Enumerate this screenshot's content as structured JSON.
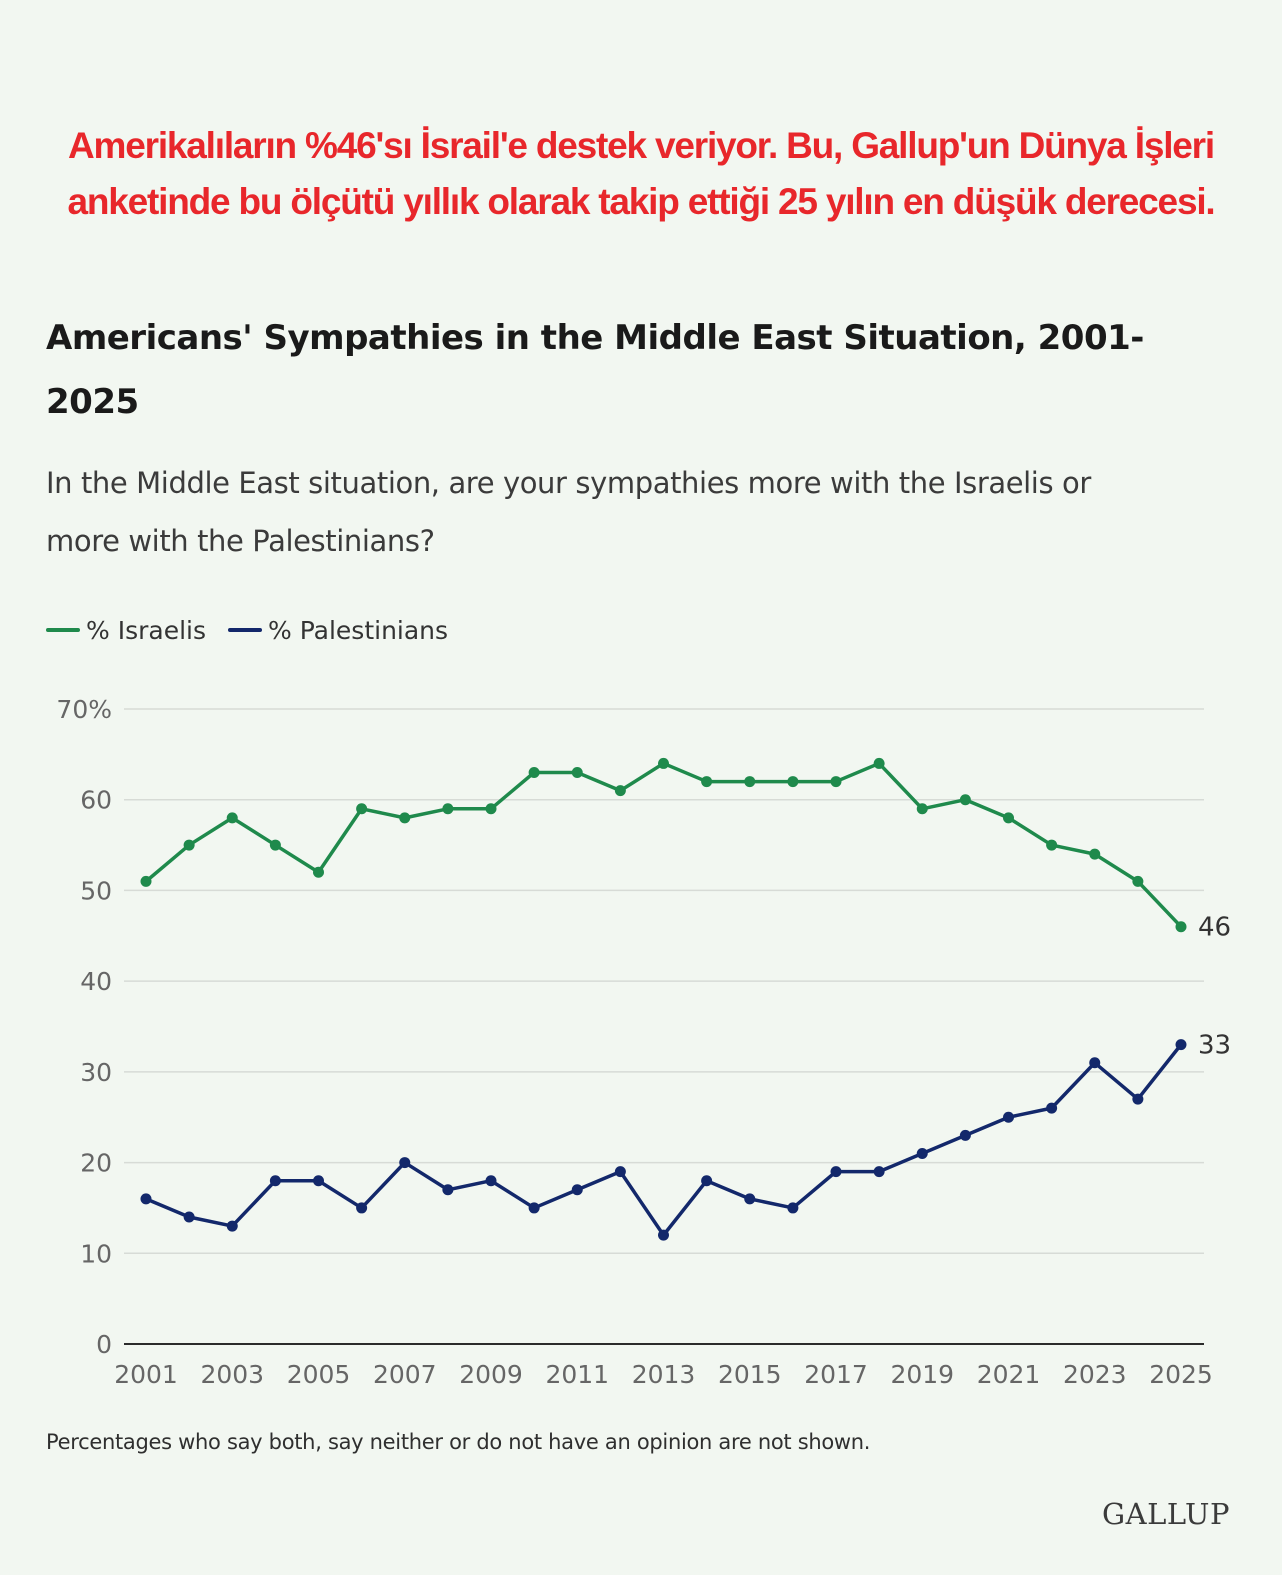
{
  "headline": {
    "line1": "Amerikalıların %46'sı İsrail'e destek veriyor. Bu, Gallup'un Dünya İşleri",
    "line2": "anketinde bu ölçütü yıllık olarak takip ettiği 25 yılın en düşük derecesi."
  },
  "chart_data": {
    "type": "line",
    "title": "Americans' Sympathies in the Middle East Situation, 2001-2025",
    "title_line1": "Americans' Sympathies in the Middle East Situation, 2001-",
    "title_line2": "2025",
    "subtitle_line1": "In the Middle East situation, are your sympathies more with the Israelis or",
    "subtitle_line2": "more with the Palestinians?",
    "x": [
      2001,
      2002,
      2003,
      2004,
      2005,
      2006,
      2007,
      2008,
      2009,
      2010,
      2011,
      2012,
      2013,
      2014,
      2015,
      2016,
      2017,
      2018,
      2019,
      2020,
      2021,
      2022,
      2023,
      2024,
      2025
    ],
    "x_tick_labels": [
      "2001",
      "2003",
      "2005",
      "2007",
      "2009",
      "2011",
      "2013",
      "2015",
      "2017",
      "2019",
      "2021",
      "2023",
      "2025"
    ],
    "y_tick_labels": [
      "70%",
      "60",
      "50",
      "40",
      "30",
      "20",
      "10",
      "0"
    ],
    "ylim": [
      0,
      70
    ],
    "grid": true,
    "legend_position": "top-left",
    "series": [
      {
        "name": "% Israelis",
        "color": "#1f8a4c",
        "values": [
          51,
          55,
          58,
          55,
          52,
          59,
          58,
          59,
          59,
          63,
          63,
          61,
          64,
          62,
          62,
          62,
          62,
          64,
          59,
          60,
          58,
          55,
          54,
          51,
          46
        ],
        "end_label": "46"
      },
      {
        "name": "% Palestinians",
        "color": "#13286b",
        "values": [
          16,
          14,
          13,
          18,
          18,
          15,
          20,
          17,
          18,
          15,
          17,
          19,
          12,
          18,
          16,
          15,
          19,
          19,
          21,
          23,
          25,
          26,
          31,
          27,
          33
        ],
        "end_label": "33"
      }
    ]
  },
  "footnote": "Percentages who say both, say neither or do not have an opinion are not shown.",
  "brand": "GALLUP"
}
